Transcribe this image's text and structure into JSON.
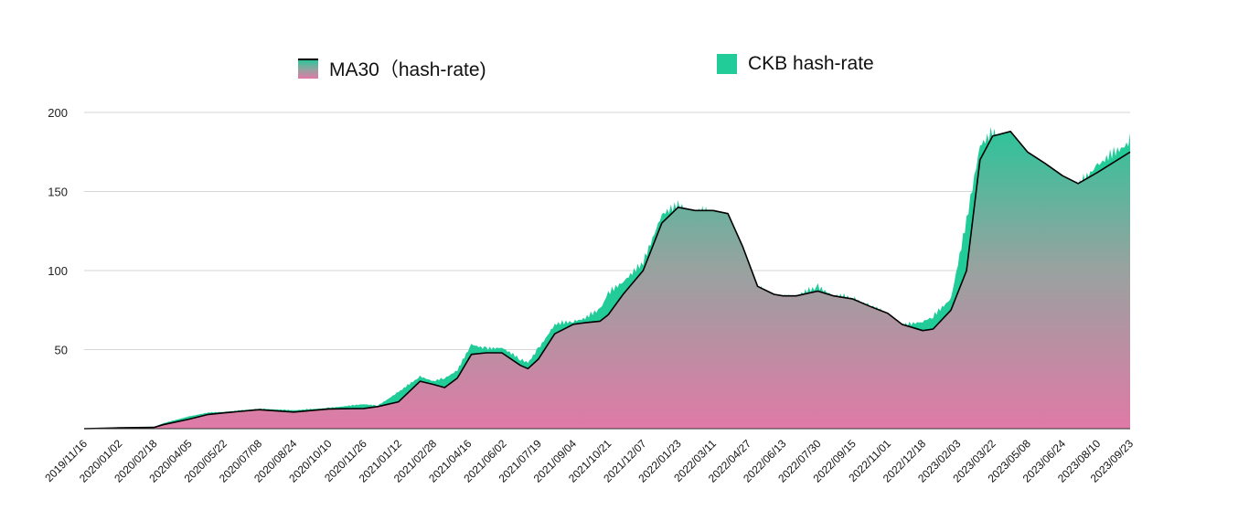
{
  "chart_data": {
    "type": "area",
    "title": "",
    "xlabel": "",
    "ylabel": "",
    "ylim": [
      0,
      200
    ],
    "yticks": [
      50,
      100,
      150,
      200
    ],
    "grid": true,
    "legend_position": "top",
    "x_tick_labels": [
      "2019/11/16",
      "2020/01/02",
      "2020/02/18",
      "2020/04/05",
      "2020/05/22",
      "2020/07/08",
      "2020/08/24",
      "2020/10/10",
      "2020/11/26",
      "2021/01/12",
      "2021/02/28",
      "2021/04/16",
      "2021/06/02",
      "2021/07/19",
      "2021/09/04",
      "2021/10/21",
      "2021/12/07",
      "2022/01/23",
      "2022/03/11",
      "2022/04/27",
      "2022/06/13",
      "2022/07/30",
      "2022/09/15",
      "2022/11/01",
      "2022/12/18",
      "2023/02/03",
      "2023/03/22",
      "2023/05/08",
      "2023/06/24",
      "2023/08/10",
      "2023/09/23"
    ],
    "x_start": "2019/11/16",
    "x_end": "2023/09/23",
    "series": [
      {
        "name": "MA30 (hash-rate)",
        "legend_label": "MA30（hash-rate)",
        "color_top": "#2fc39a",
        "color_bottom": "#e07aa6",
        "line_color": "#000000",
        "points": [
          [
            "2019/11/16",
            0
          ],
          [
            "2020/01/02",
            0.5
          ],
          [
            "2020/02/18",
            0.8
          ],
          [
            "2020/03/01",
            2.5
          ],
          [
            "2020/04/05",
            6
          ],
          [
            "2020/05/01",
            9
          ],
          [
            "2020/05/22",
            10
          ],
          [
            "2020/07/08",
            12
          ],
          [
            "2020/08/24",
            10.5
          ],
          [
            "2020/10/10",
            12.5
          ],
          [
            "2020/11/26",
            12.8
          ],
          [
            "2020/12/15",
            14
          ],
          [
            "2021/01/12",
            17
          ],
          [
            "2021/02/10",
            30
          ],
          [
            "2021/02/28",
            28
          ],
          [
            "2021/03/15",
            26
          ],
          [
            "2021/04/01",
            32
          ],
          [
            "2021/04/20",
            47
          ],
          [
            "2021/05/10",
            48
          ],
          [
            "2021/05/31",
            48
          ],
          [
            "2021/06/25",
            40
          ],
          [
            "2021/07/05",
            38
          ],
          [
            "2021/07/19",
            44
          ],
          [
            "2021/08/10",
            60
          ],
          [
            "2021/09/04",
            66
          ],
          [
            "2021/09/20",
            67
          ],
          [
            "2021/10/10",
            68
          ],
          [
            "2021/10/21",
            72
          ],
          [
            "2021/11/10",
            85
          ],
          [
            "2021/12/07",
            100
          ],
          [
            "2022/01/01",
            130
          ],
          [
            "2022/01/23",
            140
          ],
          [
            "2022/02/15",
            138
          ],
          [
            "2022/03/11",
            138
          ],
          [
            "2022/03/31",
            136
          ],
          [
            "2022/04/20",
            115
          ],
          [
            "2022/05/10",
            90
          ],
          [
            "2022/06/01",
            85
          ],
          [
            "2022/06/13",
            84
          ],
          [
            "2022/07/01",
            84
          ],
          [
            "2022/07/30",
            87
          ],
          [
            "2022/08/20",
            84
          ],
          [
            "2022/09/15",
            82
          ],
          [
            "2022/10/10",
            77
          ],
          [
            "2022/11/01",
            73
          ],
          [
            "2022/11/20",
            66
          ],
          [
            "2022/12/18",
            62
          ],
          [
            "2023/01/01",
            63
          ],
          [
            "2023/01/25",
            75
          ],
          [
            "2023/02/15",
            100
          ],
          [
            "2023/03/05",
            170
          ],
          [
            "2023/03/22",
            185
          ],
          [
            "2023/04/15",
            188
          ],
          [
            "2023/05/08",
            175
          ],
          [
            "2023/05/31",
            168
          ],
          [
            "2023/06/24",
            160
          ],
          [
            "2023/07/15",
            155
          ],
          [
            "2023/08/10",
            162
          ],
          [
            "2023/09/23",
            175
          ]
        ]
      },
      {
        "name": "CKB hash-rate",
        "legend_label": "CKB hash-rate",
        "color": "#22cc99",
        "points": [
          [
            "2019/11/16",
            0
          ],
          [
            "2020/01/02",
            0.6
          ],
          [
            "2020/02/18",
            1
          ],
          [
            "2020/03/01",
            3.5
          ],
          [
            "2020/04/05",
            8
          ],
          [
            "2020/05/01",
            10.5
          ],
          [
            "2020/05/22",
            11
          ],
          [
            "2020/07/08",
            13
          ],
          [
            "2020/08/24",
            12
          ],
          [
            "2020/10/10",
            13.5
          ],
          [
            "2020/11/26",
            16
          ],
          [
            "2020/12/15",
            15
          ],
          [
            "2021/01/12",
            24
          ],
          [
            "2021/02/10",
            34
          ],
          [
            "2021/02/28",
            31
          ],
          [
            "2021/03/15",
            33
          ],
          [
            "2021/04/01",
            38
          ],
          [
            "2021/04/20",
            55
          ],
          [
            "2021/05/10",
            52
          ],
          [
            "2021/05/31",
            53
          ],
          [
            "2021/06/25",
            45
          ],
          [
            "2021/07/05",
            43
          ],
          [
            "2021/07/19",
            52
          ],
          [
            "2021/08/10",
            68
          ],
          [
            "2021/09/04",
            70
          ],
          [
            "2021/09/20",
            72
          ],
          [
            "2021/10/10",
            78
          ],
          [
            "2021/10/21",
            88
          ],
          [
            "2021/11/10",
            96
          ],
          [
            "2021/12/07",
            108
          ],
          [
            "2022/01/01",
            140
          ],
          [
            "2022/01/23",
            145
          ],
          [
            "2022/02/15",
            142
          ],
          [
            "2022/03/11",
            141
          ],
          [
            "2022/03/31",
            139
          ],
          [
            "2022/04/20",
            110
          ],
          [
            "2022/05/10",
            92
          ],
          [
            "2022/06/01",
            86
          ],
          [
            "2022/06/13",
            85
          ],
          [
            "2022/07/01",
            87
          ],
          [
            "2022/07/30",
            92
          ],
          [
            "2022/08/20",
            87
          ],
          [
            "2022/09/15",
            85
          ],
          [
            "2022/10/10",
            80
          ],
          [
            "2022/11/01",
            74
          ],
          [
            "2022/11/20",
            67
          ],
          [
            "2022/12/18",
            70
          ],
          [
            "2023/01/01",
            73
          ],
          [
            "2023/01/25",
            85
          ],
          [
            "2023/02/15",
            135
          ],
          [
            "2023/03/05",
            185
          ],
          [
            "2023/03/22",
            192
          ],
          [
            "2023/04/15",
            186
          ],
          [
            "2023/05/08",
            174
          ],
          [
            "2023/05/31",
            167
          ],
          [
            "2023/06/24",
            158
          ],
          [
            "2023/07/15",
            158
          ],
          [
            "2023/08/10",
            172
          ],
          [
            "2023/09/23",
            187
          ]
        ]
      }
    ]
  }
}
